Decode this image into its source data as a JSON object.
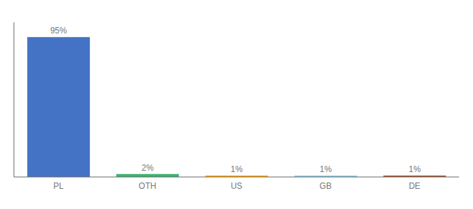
{
  "chart_data": {
    "type": "bar",
    "categories": [
      "PL",
      "OTH",
      "US",
      "GB",
      "DE"
    ],
    "values": [
      95,
      2,
      1,
      1,
      1
    ],
    "value_labels": [
      "95%",
      "2%",
      "1%",
      "1%",
      "1%"
    ],
    "data_labels": true,
    "colors": [
      "#4472C4",
      "#3CB371",
      "#FFA500",
      "#87CEEB",
      "#A0522D"
    ],
    "ylim": [
      0,
      105
    ],
    "grid": false,
    "tick_labels": "x"
  }
}
